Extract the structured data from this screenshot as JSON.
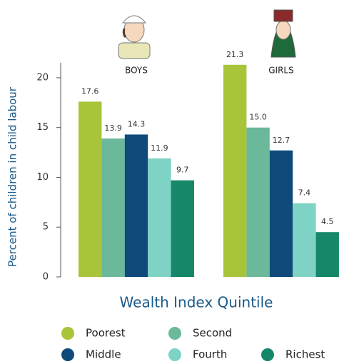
{
  "chart_data": {
    "type": "bar",
    "y_label": "Percent of children in child labour",
    "x_label": "Wealth Index Quintile",
    "categories": [
      "BOYS",
      "GIRLS"
    ],
    "series": [
      {
        "name": "Poorest",
        "color": "#a8c43a",
        "values": [
          17.6,
          21.3
        ],
        "value_labels": [
          "17.6",
          "21.3"
        ]
      },
      {
        "name": "Second",
        "color": "#6bb89a",
        "values": [
          13.9,
          15.0
        ],
        "value_labels": [
          "13.9",
          "15.0"
        ]
      },
      {
        "name": "Middle",
        "color": "#0f4a7a",
        "values": [
          14.3,
          12.7
        ],
        "value_labels": [
          "14.3",
          "12.7"
        ]
      },
      {
        "name": "Fourth",
        "color": "#7ed3c4",
        "values": [
          11.9,
          7.4
        ],
        "value_labels": [
          "11.9",
          "7.4"
        ]
      },
      {
        "name": "Richest",
        "color": "#17876a",
        "values": [
          9.7,
          4.5
        ],
        "value_labels": [
          "9.7",
          "4.5"
        ]
      }
    ],
    "ylim": [
      0,
      21.5
    ],
    "yticks": [
      0,
      5,
      10,
      15,
      20
    ]
  }
}
